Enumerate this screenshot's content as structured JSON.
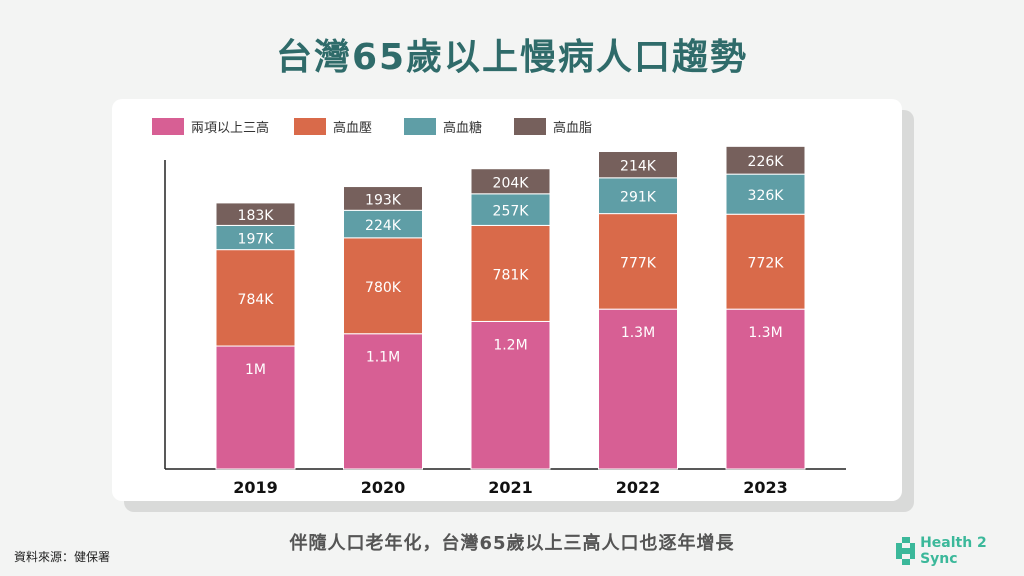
{
  "title": "台灣65歲以上慢病人口趨勢",
  "subtitle": "伴隨人口老年化，台灣65歲以上三高人口也逐年增長",
  "source": "資料來源：健保署",
  "logo_text": "Health 2 Sync",
  "chart_data": {
    "type": "bar",
    "stacked": true,
    "categories": [
      "2019",
      "2020",
      "2021",
      "2022",
      "2023"
    ],
    "series": [
      {
        "name": "兩項以上三高",
        "color": "#d75f94",
        "values": [
          1000,
          1100,
          1200,
          1300,
          1300
        ],
        "labels": [
          "1M",
          "1.1M",
          "1.2M",
          "1.3M",
          "1.3M"
        ]
      },
      {
        "name": "高血壓",
        "color": "#d96a4a",
        "values": [
          784,
          780,
          781,
          777,
          772
        ],
        "labels": [
          "784K",
          "780K",
          "781K",
          "777K",
          "772K"
        ]
      },
      {
        "name": "高血糖",
        "color": "#5f9ea6",
        "values": [
          197,
          224,
          257,
          291,
          326
        ],
        "labels": [
          "197K",
          "224K",
          "257K",
          "291K",
          "326K"
        ]
      },
      {
        "name": "高血脂",
        "color": "#76605c",
        "values": [
          183,
          193,
          204,
          214,
          226
        ],
        "labels": [
          "183K",
          "193K",
          "204K",
          "214K",
          "226K"
        ]
      }
    ],
    "unit": "thousands",
    "ylim": [
      0,
      2700
    ],
    "grid": false,
    "legend": "top-left"
  }
}
